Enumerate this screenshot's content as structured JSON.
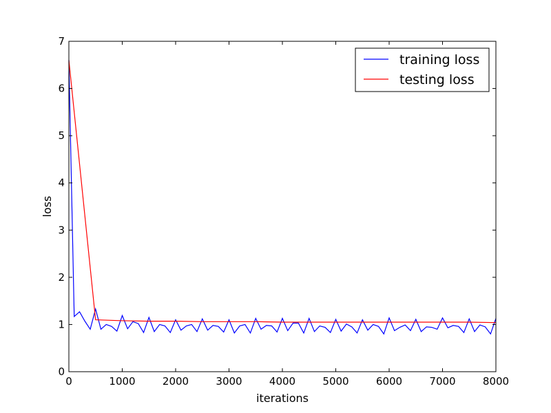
{
  "chart_data": {
    "type": "line",
    "title": "",
    "xlabel": "iterations",
    "ylabel": "loss",
    "xlim": [
      0,
      8000
    ],
    "ylim": [
      0,
      7
    ],
    "xticks": [
      0,
      1000,
      2000,
      3000,
      4000,
      5000,
      6000,
      7000,
      8000
    ],
    "yticks": [
      0,
      1,
      2,
      3,
      4,
      5,
      6,
      7
    ],
    "grid": false,
    "legend_position": "top-right",
    "series": [
      {
        "name": "training loss",
        "color": "#0000ff",
        "x": [
          0,
          100,
          200,
          300,
          400,
          500,
          600,
          700,
          800,
          900,
          1000,
          1100,
          1200,
          1300,
          1400,
          1500,
          1600,
          1700,
          1800,
          1900,
          2000,
          2100,
          2200,
          2300,
          2400,
          2500,
          2600,
          2700,
          2800,
          2900,
          3000,
          3100,
          3200,
          3300,
          3400,
          3500,
          3600,
          3700,
          3800,
          3900,
          4000,
          4100,
          4200,
          4300,
          4400,
          4500,
          4600,
          4700,
          4800,
          4900,
          5000,
          5100,
          5200,
          5300,
          5400,
          5500,
          5600,
          5700,
          5800,
          5900,
          6000,
          6100,
          6200,
          6300,
          6400,
          6500,
          6600,
          6700,
          6800,
          6900,
          7000,
          7100,
          7200,
          7300,
          7400,
          7500,
          7600,
          7700,
          7800,
          7900,
          8000
        ],
        "y": [
          6.6,
          1.17,
          1.27,
          1.07,
          0.9,
          1.33,
          0.9,
          1.0,
          0.96,
          0.86,
          1.19,
          0.91,
          1.06,
          1.02,
          0.83,
          1.15,
          0.85,
          1.0,
          0.97,
          0.83,
          1.1,
          0.88,
          0.97,
          1.0,
          0.85,
          1.12,
          0.88,
          0.98,
          0.96,
          0.84,
          1.1,
          0.82,
          0.97,
          1.0,
          0.82,
          1.13,
          0.9,
          0.98,
          0.97,
          0.84,
          1.13,
          0.87,
          1.03,
          1.03,
          0.82,
          1.13,
          0.85,
          0.97,
          0.94,
          0.83,
          1.11,
          0.86,
          1.01,
          0.95,
          0.82,
          1.1,
          0.88,
          1.0,
          0.96,
          0.8,
          1.14,
          0.87,
          0.94,
          0.99,
          0.87,
          1.11,
          0.85,
          0.95,
          0.94,
          0.9,
          1.14,
          0.93,
          0.98,
          0.96,
          0.83,
          1.12,
          0.85,
          0.99,
          0.95,
          0.8,
          1.13
        ]
      },
      {
        "name": "testing loss",
        "color": "#ff0000",
        "x": [
          0,
          500,
          1000,
          1500,
          2000,
          2500,
          3000,
          3500,
          4000,
          4500,
          5000,
          5500,
          6000,
          6500,
          7000,
          7500,
          8000
        ],
        "y": [
          6.6,
          1.1,
          1.08,
          1.07,
          1.07,
          1.06,
          1.06,
          1.06,
          1.05,
          1.05,
          1.05,
          1.05,
          1.05,
          1.05,
          1.05,
          1.05,
          1.04
        ]
      }
    ]
  }
}
